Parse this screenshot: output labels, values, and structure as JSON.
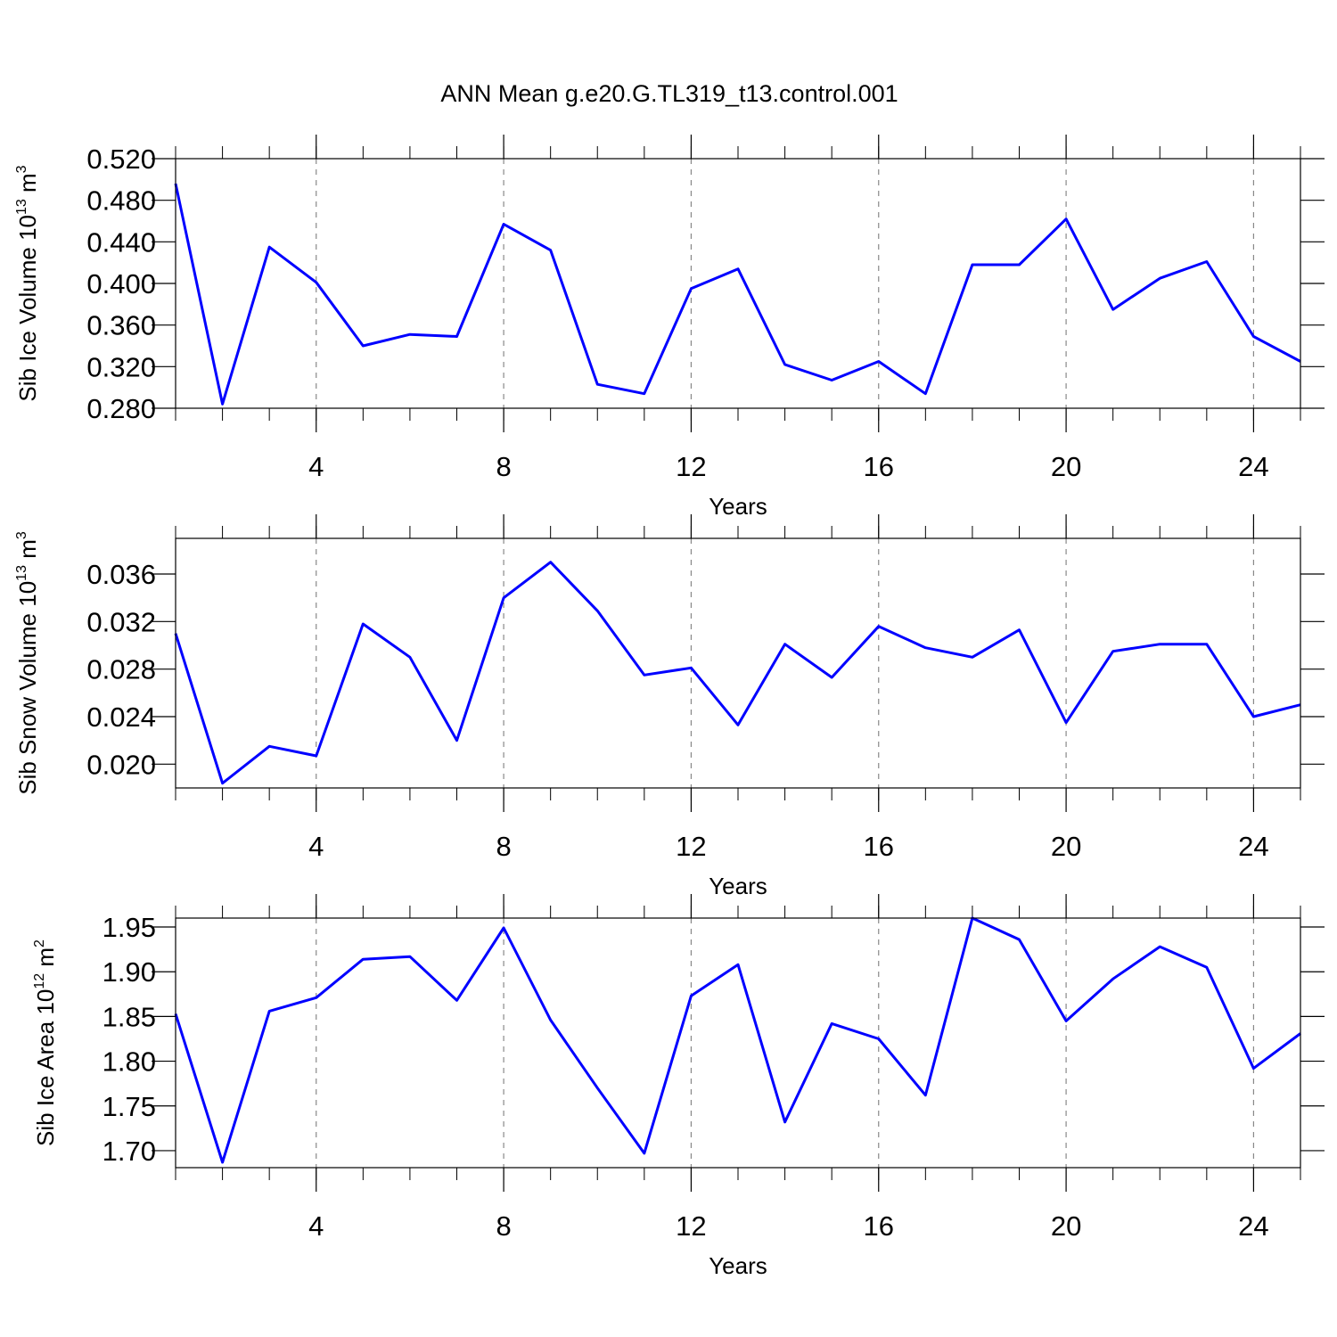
{
  "chart_data": [
    {
      "type": "line",
      "title": "ANN Mean g.e20.G.TL319_t13.control.001",
      "xlabel": "Years",
      "ylabel": [
        "Sib Ice Volume 10",
        "13",
        " m",
        "3"
      ],
      "x": [
        1,
        2,
        3,
        4,
        5,
        6,
        7,
        8,
        9,
        10,
        11,
        12,
        13,
        14,
        15,
        16,
        17,
        18,
        19,
        20,
        21,
        22,
        23,
        24,
        25
      ],
      "series": [
        {
          "color": "#0000ff",
          "values": [
            0.496,
            0.284,
            0.435,
            0.401,
            0.34,
            0.351,
            0.349,
            0.457,
            0.432,
            0.303,
            0.294,
            0.395,
            0.414,
            0.322,
            0.307,
            0.325,
            0.294,
            0.418,
            0.418,
            0.462,
            0.375,
            0.405,
            0.421,
            0.349,
            0.325
          ]
        }
      ],
      "xlim": [
        1,
        25
      ],
      "xticks": [
        4,
        8,
        12,
        16,
        20,
        24
      ],
      "ylim": [
        0.28,
        0.52
      ],
      "yticks": [
        {
          "value": 0.28,
          "label": "0.280"
        },
        {
          "value": 0.32,
          "label": "0.320"
        },
        {
          "value": 0.36,
          "label": "0.360"
        },
        {
          "value": 0.4,
          "label": "0.400"
        },
        {
          "value": 0.44,
          "label": "0.440"
        },
        {
          "value": 0.48,
          "label": "0.480"
        },
        {
          "value": 0.52,
          "label": "0.520"
        }
      ],
      "grid": "x"
    },
    {
      "type": "line",
      "xlabel": "Years",
      "ylabel": [
        "Sib Snow Volume 10",
        "13",
        " m",
        "3"
      ],
      "x": [
        1,
        2,
        3,
        4,
        5,
        6,
        7,
        8,
        9,
        10,
        11,
        12,
        13,
        14,
        15,
        16,
        17,
        18,
        19,
        20,
        21,
        22,
        23,
        24,
        25
      ],
      "series": [
        {
          "color": "#0000ff",
          "values": [
            0.031,
            0.0184,
            0.0215,
            0.0207,
            0.0318,
            0.029,
            0.022,
            0.034,
            0.037,
            0.0329,
            0.0275,
            0.0281,
            0.0233,
            0.0301,
            0.0273,
            0.0316,
            0.0298,
            0.029,
            0.0313,
            0.0235,
            0.0295,
            0.0301,
            0.0301,
            0.024,
            0.025
          ]
        }
      ],
      "xlim": [
        1,
        25
      ],
      "xticks": [
        4,
        8,
        12,
        16,
        20,
        24
      ],
      "ylim": [
        0.018,
        0.039
      ],
      "yticks": [
        {
          "value": 0.02,
          "label": "0.020"
        },
        0.024,
        0.028,
        0.032,
        0.036
      ],
      "grid": "x"
    },
    {
      "type": "line",
      "xlabel": "Years",
      "ylabel": [
        "Sib Ice Area 10",
        "12",
        " m",
        "2"
      ],
      "x": [
        1,
        2,
        3,
        4,
        5,
        6,
        7,
        8,
        9,
        10,
        11,
        12,
        13,
        14,
        15,
        16,
        17,
        18,
        19,
        20,
        21,
        22,
        23,
        24,
        25
      ],
      "series": [
        {
          "color": "#0000ff",
          "values": [
            1.853,
            1.687,
            1.856,
            1.871,
            1.914,
            1.917,
            1.868,
            1.949,
            1.846,
            1.77,
            1.697,
            1.873,
            1.908,
            1.732,
            1.842,
            1.825,
            1.762,
            1.96,
            1.936,
            1.845,
            1.892,
            1.928,
            1.905,
            1.792,
            1.831
          ]
        }
      ],
      "xlim": [
        1,
        25
      ],
      "xticks": [
        4,
        8,
        12,
        16,
        20,
        24
      ],
      "ylim": [
        1.681,
        1.96
      ],
      "yticks": [
        {
          "value": 1.7,
          "label": "1.70"
        },
        1.75,
        {
          "value": 1.8,
          "label": "1.80"
        },
        1.85,
        {
          "value": 1.9,
          "label": "1.90"
        },
        1.95
      ],
      "grid": "x"
    }
  ]
}
